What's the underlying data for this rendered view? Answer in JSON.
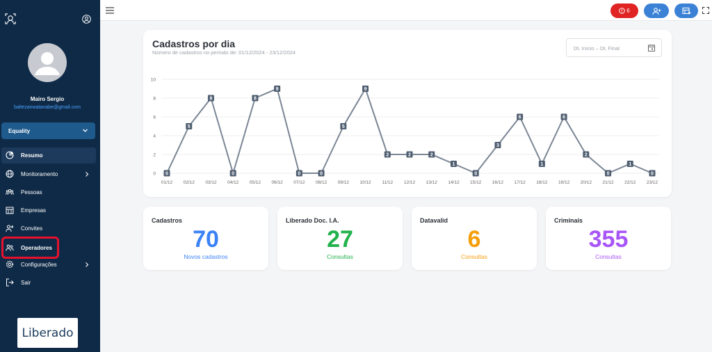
{
  "sidebar": {
    "user_name": "Mairo Sergio",
    "user_email": "baltezanwatanabe@gmail.com",
    "company": "Equality",
    "items": [
      {
        "label": "Resumo",
        "icon": "pie-chart-icon",
        "active": true,
        "has_submenu": false
      },
      {
        "label": "Monitoramento",
        "icon": "globe-icon",
        "active": false,
        "has_submenu": true
      },
      {
        "label": "Pessoas",
        "icon": "people-icon",
        "active": false,
        "has_submenu": false
      },
      {
        "label": "Empresas",
        "icon": "building-icon",
        "active": false,
        "has_submenu": false
      },
      {
        "label": "Convites",
        "icon": "user-plus-icon",
        "active": false,
        "has_submenu": false
      },
      {
        "label": "Operadores",
        "icon": "users-icon",
        "active": false,
        "has_submenu": false,
        "highlighted": true
      },
      {
        "label": "Configurações",
        "icon": "gear-icon",
        "active": false,
        "has_submenu": true
      },
      {
        "label": "Sair",
        "icon": "logout-icon",
        "active": false,
        "has_submenu": false
      }
    ],
    "brand": "Liberado"
  },
  "header": {
    "alert_count": "6",
    "colors": {
      "alert": "#e02424",
      "primary": "#3b82d6"
    }
  },
  "chart_card": {
    "title": "Cadastros por dia",
    "subtitle": "Número de cadastros no período de: 01/12/2024 - 23/12/2024",
    "date_placeholder_start": "Dt. Início",
    "date_separator": "–",
    "date_placeholder_end": "Dt. Final"
  },
  "chart_data": {
    "type": "line",
    "categories": [
      "01/12",
      "02/12",
      "03/12",
      "04/12",
      "05/12",
      "06/12",
      "07/12",
      "08/12",
      "09/12",
      "10/12",
      "11/12",
      "12/12",
      "13/12",
      "14/12",
      "15/12",
      "16/12",
      "17/12",
      "18/12",
      "19/12",
      "20/12",
      "21/12",
      "22/12",
      "23/12"
    ],
    "series": [
      {
        "values": [
          0,
          5,
          8,
          0,
          8,
          9,
          0,
          0,
          5,
          9,
          2,
          2,
          2,
          1,
          0,
          3,
          6,
          1,
          6,
          2,
          0,
          1,
          0
        ]
      }
    ],
    "yticks": [
      0,
      2,
      4,
      6,
      8,
      10
    ],
    "ylim": [
      0,
      10
    ],
    "grid": true,
    "line_color": "#7a8594"
  },
  "stats": [
    {
      "title": "Cadastros",
      "value": "70",
      "caption": "Novos cadastros",
      "color": "#3b82f6"
    },
    {
      "title": "Liberado Doc. I.A.",
      "value": "27",
      "caption": "Consultas",
      "color": "#22b14c"
    },
    {
      "title": "Datavalid",
      "value": "6",
      "caption": "Consultas",
      "color": "#f59e0b"
    },
    {
      "title": "Criminais",
      "value": "355",
      "caption": "Consultas",
      "color": "#a855f7"
    }
  ]
}
